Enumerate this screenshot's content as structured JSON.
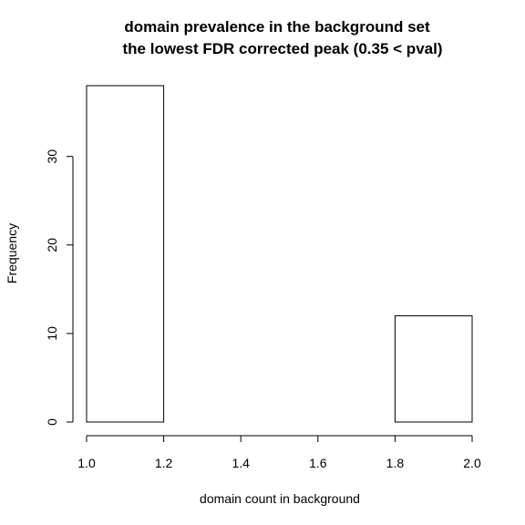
{
  "chart_data": {
    "type": "bar",
    "title": [
      "domain prevalence in the background set",
      "the lowest FDR corrected peak (0.35 < pval)"
    ],
    "xlabel": "domain count in background",
    "ylabel": "Frequency",
    "xlim": [
      1.0,
      2.0
    ],
    "ylim": [
      0,
      38
    ],
    "x_ticks": [
      "1.0",
      "1.2",
      "1.4",
      "1.6",
      "1.8",
      "2.0"
    ],
    "y_ticks": [
      "0",
      "10",
      "20",
      "30"
    ],
    "bins": [
      {
        "start": 1.0,
        "end": 1.2,
        "value": 38
      },
      {
        "start": 1.2,
        "end": 1.4,
        "value": 0
      },
      {
        "start": 1.4,
        "end": 1.6,
        "value": 0
      },
      {
        "start": 1.6,
        "end": 1.8,
        "value": 0
      },
      {
        "start": 1.8,
        "end": 2.0,
        "value": 12
      }
    ],
    "colors": {
      "bar_fill": "#ffffff",
      "bar_stroke": "#000000"
    }
  }
}
